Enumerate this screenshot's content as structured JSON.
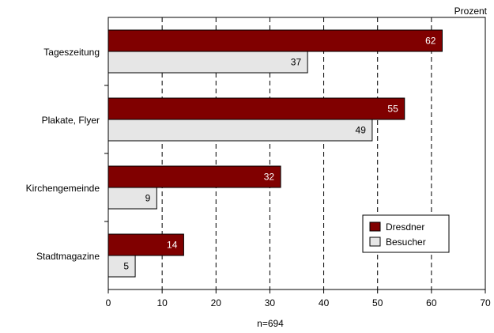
{
  "chart_data": {
    "type": "bar",
    "orientation": "horizontal",
    "categories": [
      "Tageszeitung",
      "Plakate, Flyer",
      "Kirchengemeinde",
      "Stadtmagazine"
    ],
    "series": [
      {
        "name": "Dresdner",
        "values": [
          62,
          55,
          32,
          14
        ],
        "color": "#800000"
      },
      {
        "name": "Besucher",
        "values": [
          37,
          49,
          9,
          5
        ],
        "color": "#e6e6e6"
      }
    ],
    "unit_label": "Prozent",
    "xlabel": "n=694",
    "xlim": [
      0,
      70
    ],
    "xticks": [
      "0",
      "10",
      "20",
      "30",
      "40",
      "50",
      "60",
      "70"
    ],
    "grid": "vertical-dashed",
    "legend_position": "bottom-right"
  }
}
